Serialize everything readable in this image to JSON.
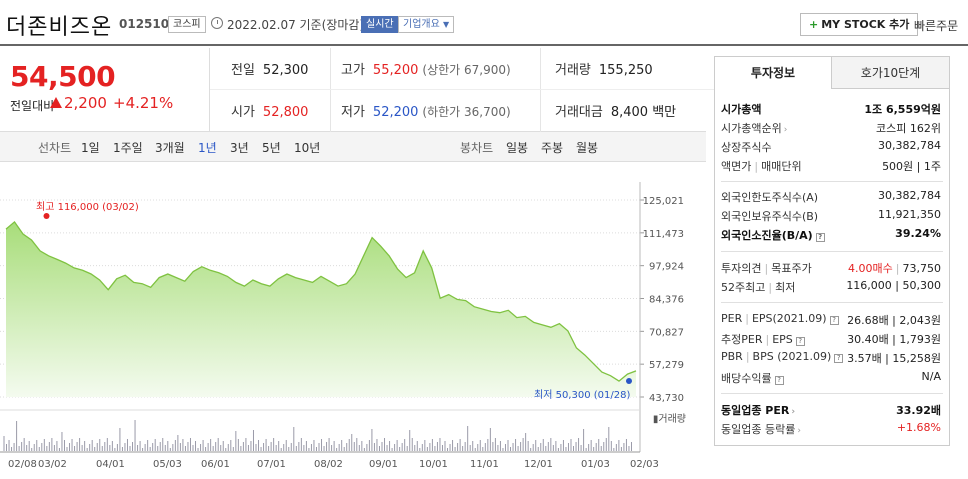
{
  "header": {
    "company": "더존비즈온",
    "code": "012510",
    "market_tag": "코스피",
    "date_text": "2022.02.07 기준(장마감)",
    "realtime_tag": "실시간",
    "overview_tag": "기업개요",
    "mystock_label": "MY STOCK 추가",
    "quick_order": "빠른주문"
  },
  "price": {
    "current": "54,500",
    "change_label": "전일대비",
    "change_value": "2,200",
    "change_pct": "+4.21%",
    "prev_close_label": "전일",
    "prev_close": "52,300",
    "open_label": "시가",
    "open": "52,800",
    "high_label": "고가",
    "high": "55,200",
    "upper_limit": "(상한가 67,900)",
    "low_label": "저가",
    "low": "52,200",
    "lower_limit": "(하한가 36,700)",
    "volume_label": "거래량",
    "volume": "155,250",
    "amount_label": "거래대금",
    "amount": "8,400 백만"
  },
  "chart_tabs": {
    "line_chart": "선차트",
    "periods": [
      "1일",
      "1주일",
      "3개월",
      "1년",
      "3년",
      "5년",
      "10년"
    ],
    "active_period": "1년",
    "candle_chart": "봉차트",
    "candle_periods": [
      "일봉",
      "주봉",
      "월봉"
    ]
  },
  "chart_data": {
    "type": "area",
    "title": "",
    "y_ticks": [
      "125,021",
      "111,473",
      "97,924",
      "84,376",
      "70,827",
      "57,279",
      "43,730"
    ],
    "ylim": [
      43730,
      125021
    ],
    "x_ticks": [
      "02/08",
      "03/02",
      "04/01",
      "05/03",
      "06/01",
      "07/01",
      "08/02",
      "09/01",
      "10/01",
      "11/01",
      "12/01",
      "01/03",
      "02/03"
    ],
    "high_annotation": "최고 116,000 (03/02)",
    "low_annotation": "최저 50,300 (01/28)",
    "volume_label": "거래량",
    "series": [
      {
        "values": [
          113000,
          116000,
          111000,
          108500,
          104000,
          102000,
          100500,
          99000,
          97000,
          96000,
          94500,
          92000,
          88000,
          92500,
          94000,
          91000,
          90500,
          89000,
          93000,
          94500,
          93000,
          91500,
          95500,
          97500,
          96000,
          95000,
          93500,
          91000,
          89500,
          92000,
          90500,
          89500,
          92500,
          94500,
          93000,
          92000,
          91000,
          93500,
          91500,
          89500,
          90500,
          94500,
          102000,
          109500,
          106000,
          102000,
          96500,
          93000,
          95000,
          104000,
          97000,
          84500,
          86000,
          84000,
          83500,
          81000,
          80000,
          79000,
          78500,
          79500,
          76500,
          77000,
          74500,
          73500,
          72500,
          74000,
          71000,
          64000,
          61000,
          57500,
          54000,
          52500,
          50300,
          53200,
          54500
        ]
      }
    ],
    "grid": "horizontal dotted",
    "color": "#7fc241"
  },
  "side": {
    "tab_info": "투자정보",
    "tab_quote": "호가10단계",
    "market_cap_label": "시가총액",
    "market_cap": "1조 6,559억원",
    "rank_label": "시가총액순위",
    "rank": "코스피 162위",
    "shares_label": "상장주식수",
    "shares": "30,382,784",
    "par_label": "액면가",
    "unit_label": "매매단위",
    "par_unit": "500원 | 1주",
    "foreign_limit_label": "외국인한도주식수(A)",
    "foreign_limit": "30,382,784",
    "foreign_hold_label": "외국인보유주식수(B)",
    "foreign_hold": "11,921,350",
    "foreign_ratio_label": "외국인소진율(B/A)",
    "foreign_ratio": "39.24%",
    "opinion_label": "투자의견",
    "target_label": "목표주가",
    "opinion": "4.00매수",
    "target": "73,750",
    "w52_label": "52주최고",
    "w52_low_label": "최저",
    "w52": "116,000 | 50,300",
    "per_label": "PER",
    "eps_label": "EPS(2021.09)",
    "per_eps": "26.68배 | 2,043원",
    "est_per_label": "추정PER",
    "est_eps_label": "EPS",
    "est_per_eps": "30.40배 | 1,793원",
    "pbr_label": "PBR",
    "bps_label": "BPS (2021.09)",
    "pbr_bps": "3.57배 | 15,258원",
    "dividend_label": "배당수익률",
    "dividend": "N/A",
    "sector_per_label": "동일업종 PER",
    "sector_per": "33.92배",
    "sector_chg_label": "동일업종 등락률",
    "sector_chg": "+1.68%"
  }
}
